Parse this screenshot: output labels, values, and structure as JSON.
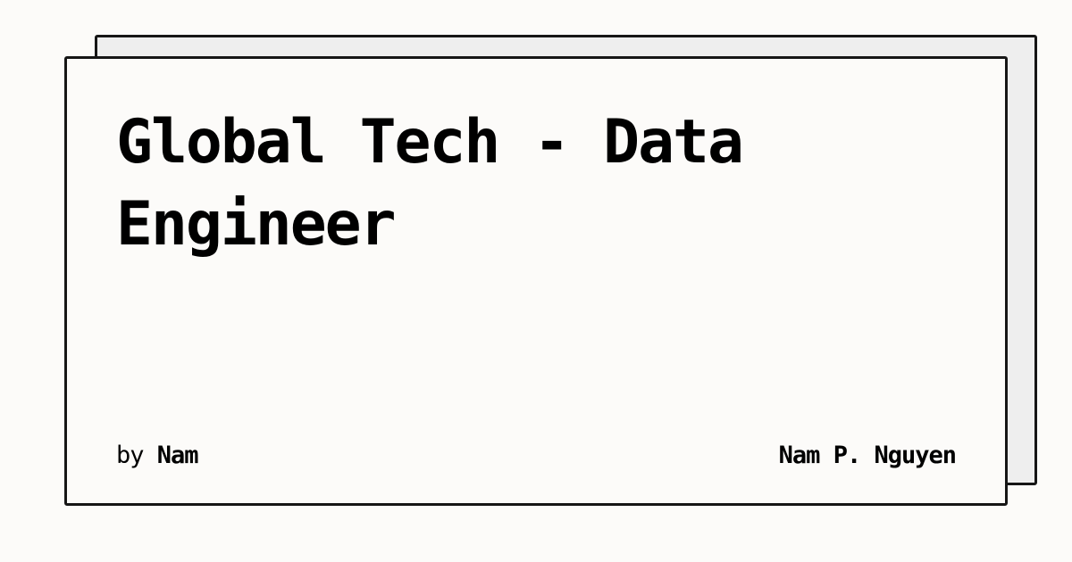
{
  "card": {
    "title": "Global Tech - Data Engineer",
    "by_label": "by",
    "author": "Nam",
    "site_name": "Nam P. Nguyen"
  }
}
